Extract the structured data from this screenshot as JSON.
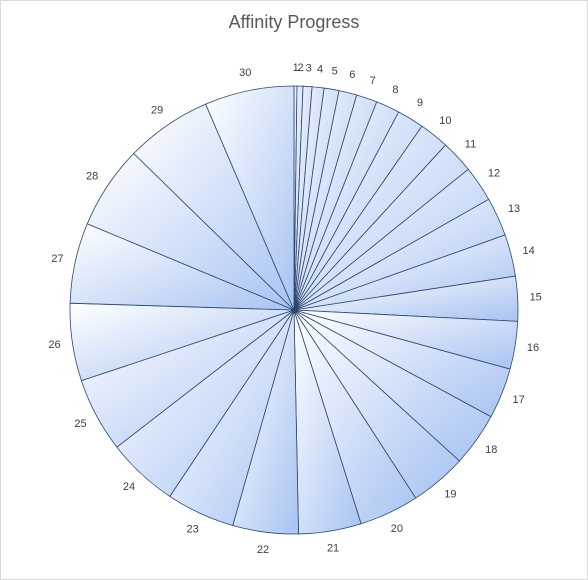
{
  "chart_data": {
    "type": "pie",
    "title": "Affinity Progress",
    "categories": [
      "1",
      "2",
      "3",
      "4",
      "5",
      "6",
      "7",
      "8",
      "9",
      "10",
      "11",
      "12",
      "13",
      "14",
      "15",
      "16",
      "17",
      "18",
      "19",
      "20",
      "21",
      "22",
      "23",
      "24",
      "25",
      "26",
      "27",
      "28",
      "29",
      "30"
    ],
    "values": [
      1,
      2,
      3,
      4,
      5,
      6,
      7,
      8,
      9,
      10,
      11,
      12,
      13,
      14,
      15,
      16,
      17,
      18,
      19,
      20,
      21,
      22,
      23,
      24,
      25,
      26,
      27,
      28,
      29,
      30
    ],
    "color": "#a8c3f2",
    "edge_color": "#2e4670"
  }
}
